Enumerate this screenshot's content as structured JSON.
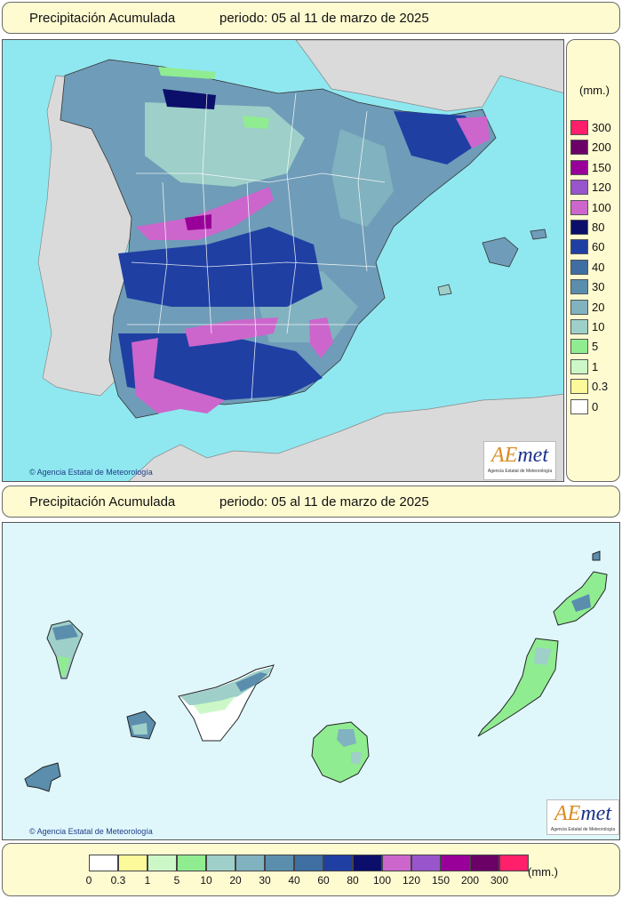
{
  "header_top": {
    "title": "Precipitación Acumulada",
    "period": "periodo: 05 al 11 de marzo de 2025"
  },
  "header_bottom": {
    "title": "Precipitación Acumulada",
    "period": "periodo: 05 al 11 de marzo de 2025"
  },
  "credit": "Agencia Estatal de Meteorología",
  "logo": {
    "word_a": "AE",
    "word_b": "met",
    "sub": "Agencia Estatal de Meteorología"
  },
  "legend": {
    "unit": "(mm.)",
    "classes": [
      {
        "label": "0",
        "color": "#ffffff"
      },
      {
        "label": "0.3",
        "color": "#fcf99a"
      },
      {
        "label": "1",
        "color": "#ccf8c7"
      },
      {
        "label": "5",
        "color": "#90ec90"
      },
      {
        "label": "10",
        "color": "#9ecfc9"
      },
      {
        "label": "20",
        "color": "#81b2bf"
      },
      {
        "label": "30",
        "color": "#5b8ead"
      },
      {
        "label": "40",
        "color": "#3f6ea3"
      },
      {
        "label": "60",
        "color": "#1f3fa3"
      },
      {
        "label": "80",
        "color": "#0b0f6a"
      },
      {
        "label": "100",
        "color": "#cc66cc"
      },
      {
        "label": "120",
        "color": "#9955cc"
      },
      {
        "label": "150",
        "color": "#990099"
      },
      {
        "label": "200",
        "color": "#6b0066"
      },
      {
        "label": "300",
        "color": "#ff1f6b"
      }
    ]
  },
  "colors": {
    "sea": "#8fe8f0",
    "other_land": "#dadada",
    "canarias_sea": "#dff7fb"
  },
  "icons": [
    "copyright-icon",
    "aemet-logo"
  ]
}
